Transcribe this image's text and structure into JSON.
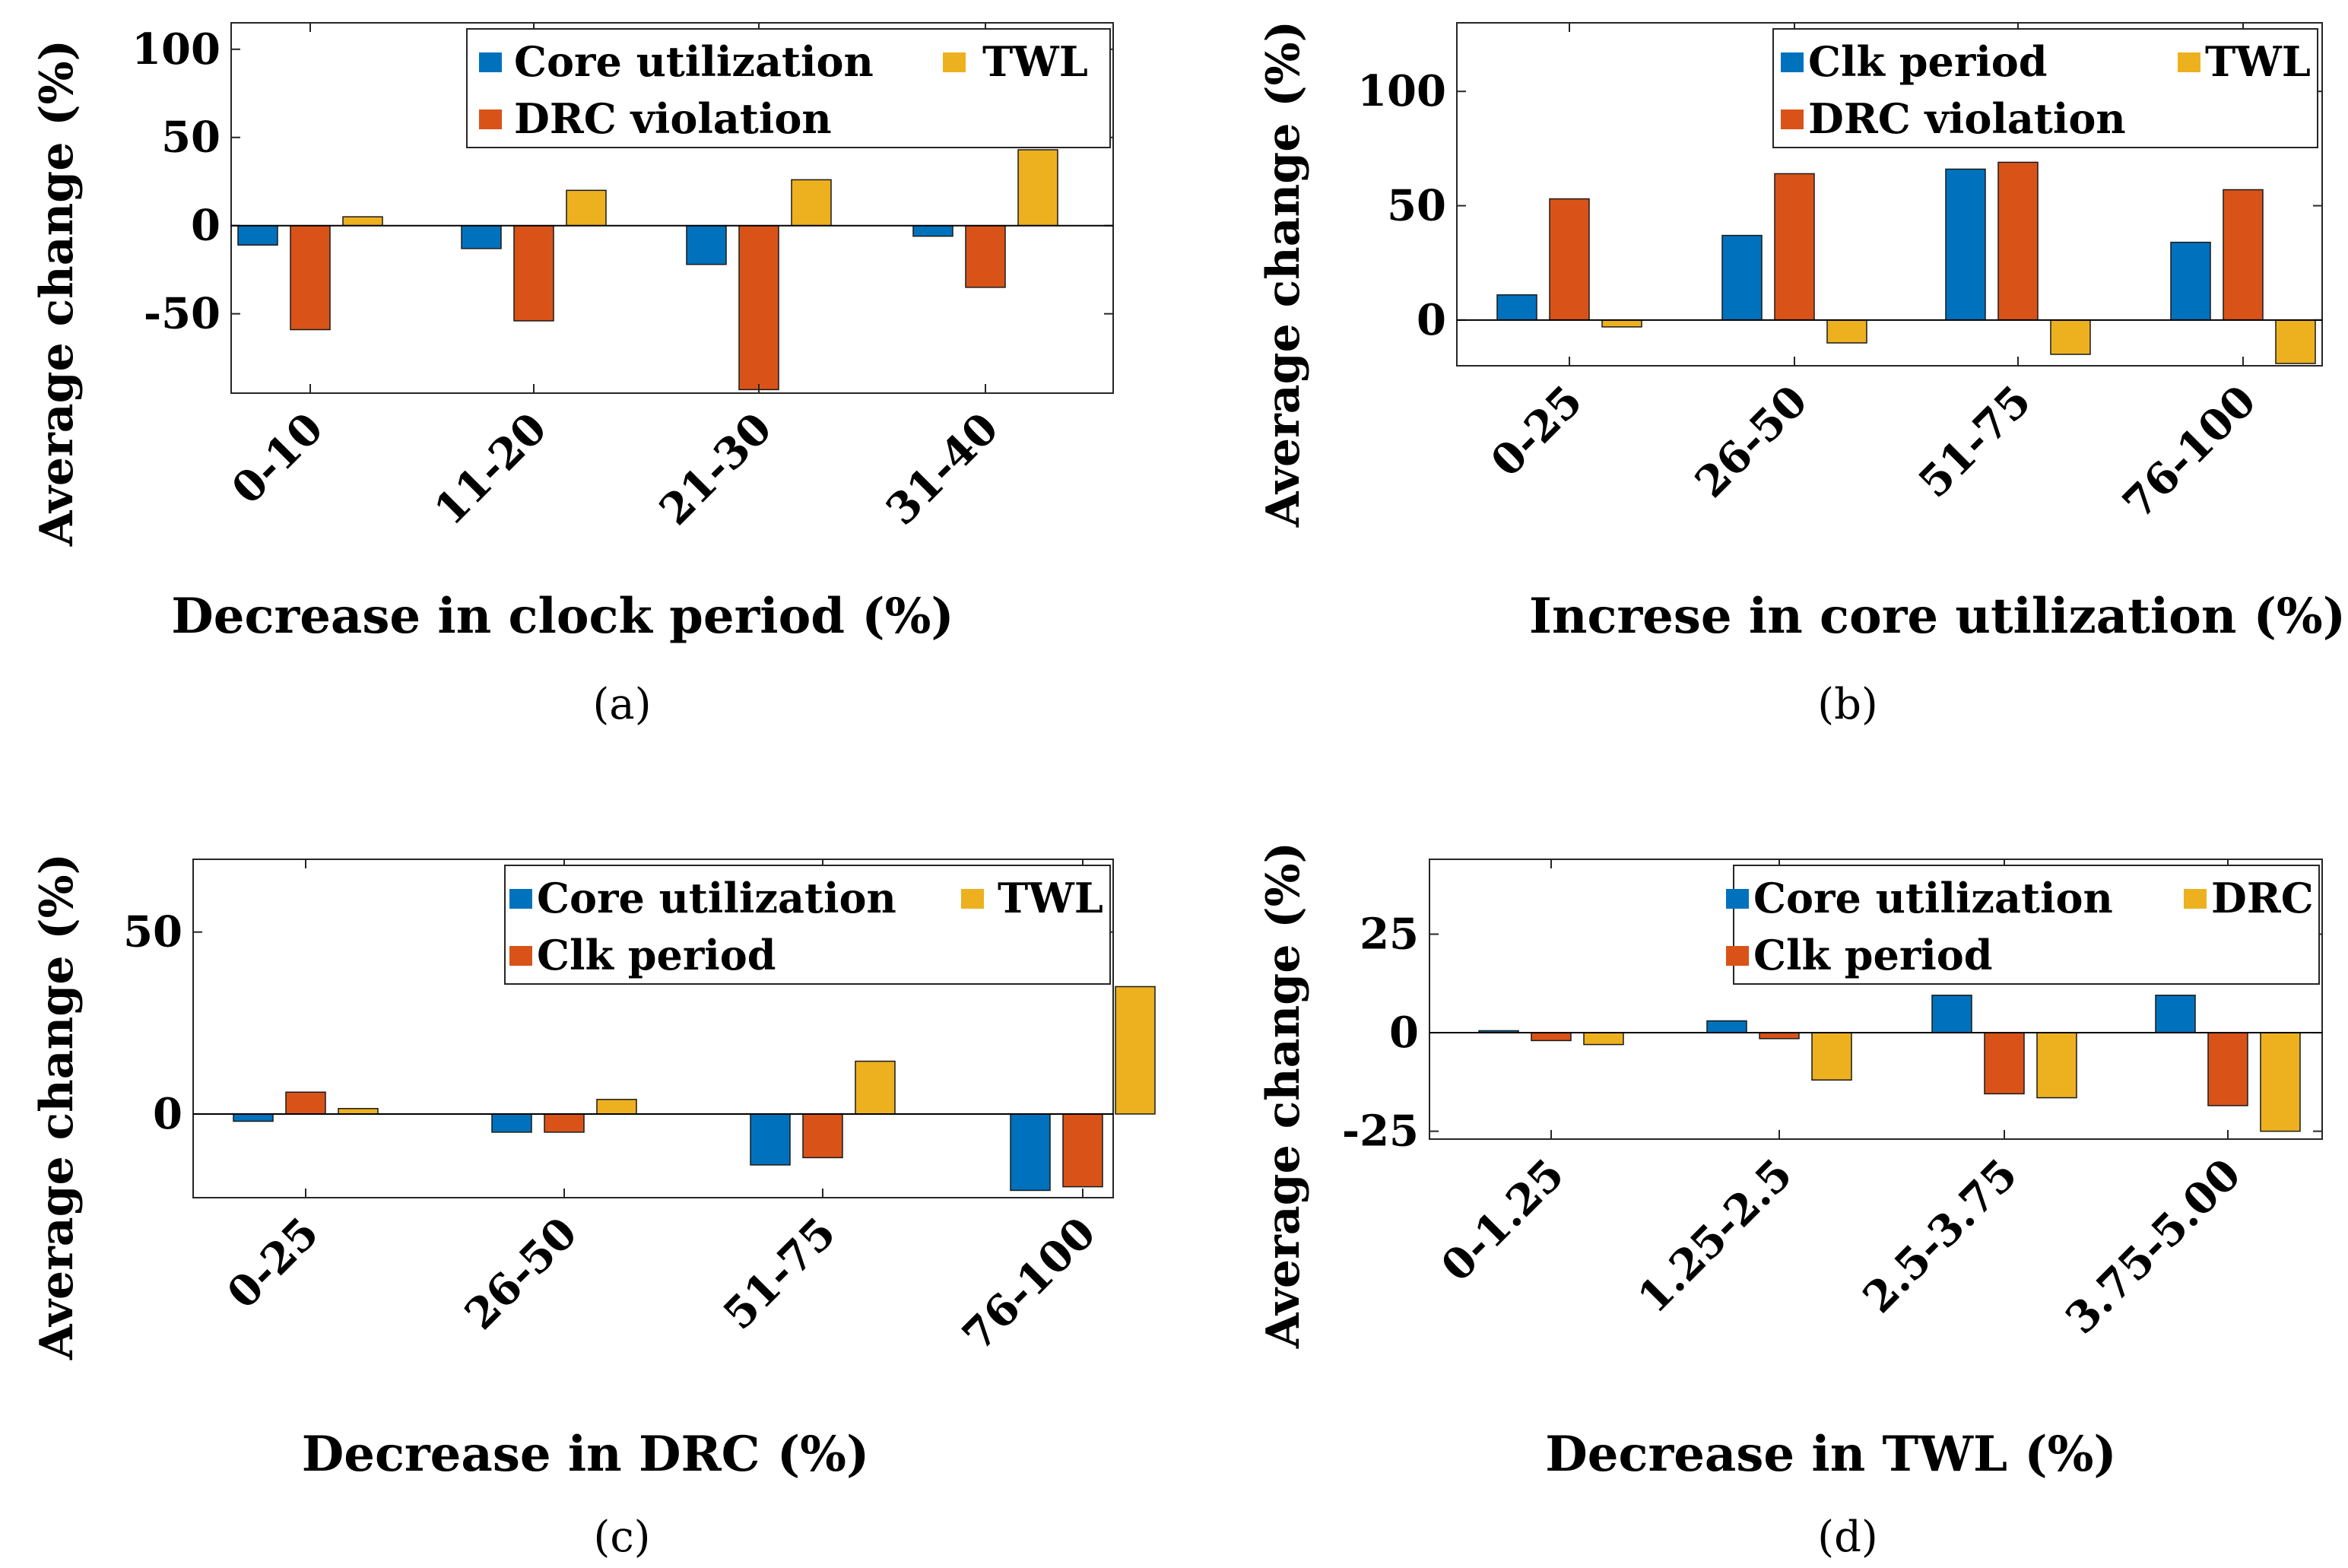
{
  "colors": {
    "blue": "#0072BD",
    "orange": "#D95319",
    "yellow": "#EDB120",
    "axis": "#262626",
    "zero_line": "#000000"
  },
  "chart_data": [
    {
      "type": "bar",
      "caption": "(a)",
      "xlabel": "Decrease in clock period (%)",
      "ylabel": "Average change (%)",
      "categories": [
        "0-10",
        "11-20",
        "21-30",
        "31-40"
      ],
      "ylim": [
        -95,
        115
      ],
      "yticks": [
        100,
        50,
        0,
        -50
      ],
      "ytick_labels": [
        "100",
        "50",
        "0",
        "-50"
      ],
      "series": [
        {
          "name": "Core utilization",
          "color": "blue",
          "values": [
            -11,
            -13,
            -22,
            -6
          ]
        },
        {
          "name": "DRC violation",
          "color": "orange",
          "values": [
            -59,
            -54,
            -93,
            -35
          ]
        },
        {
          "name": "TWL",
          "color": "yellow",
          "values": [
            5,
            20,
            26,
            43
          ]
        }
      ],
      "legend_order": [
        "Core utilization",
        "TWL",
        "DRC violation"
      ]
    },
    {
      "type": "bar",
      "caption": "(b)",
      "xlabel": "Increse in core utilization (%)",
      "ylabel": "Average change (%)",
      "categories": [
        "0-25",
        "26-50",
        "51-75",
        "76-100"
      ],
      "ylim": [
        -20,
        130
      ],
      "yticks": [
        100,
        50,
        0
      ],
      "ytick_labels": [
        "100",
        "50",
        "0"
      ],
      "series": [
        {
          "name": "Clk period",
          "color": "blue",
          "values": [
            11,
            37,
            66,
            34
          ]
        },
        {
          "name": "DRC violation",
          "color": "orange",
          "values": [
            53,
            64,
            69,
            57
          ]
        },
        {
          "name": "TWL",
          "color": "yellow",
          "values": [
            -3,
            -10,
            -15,
            -19
          ]
        }
      ],
      "legend_order": [
        "Clk period",
        "TWL",
        "DRC violation"
      ]
    },
    {
      "type": "bar",
      "caption": "(c)",
      "xlabel": "Decrease in DRC (%)",
      "ylabel": "Average change (%)",
      "categories": [
        "0-25",
        "26-50",
        "51-75",
        "76-100"
      ],
      "ylim": [
        -23,
        70
      ],
      "yticks": [
        50,
        0
      ],
      "ytick_labels": [
        "50",
        "0"
      ],
      "series": [
        {
          "name": "Core utilization",
          "color": "blue",
          "values": [
            -2,
            -5,
            -14,
            -21
          ]
        },
        {
          "name": "Clk period",
          "color": "orange",
          "values": [
            6,
            -5,
            -12,
            -20
          ]
        },
        {
          "name": "TWL",
          "color": "yellow",
          "values": [
            1.5,
            4,
            14.5,
            35
          ]
        }
      ],
      "legend_order": [
        "Core utilization",
        "TWL",
        "Clk period"
      ]
    },
    {
      "type": "bar",
      "caption": "(d)",
      "xlabel": "Decrease in TWL (%)",
      "ylabel": "Average change (%)",
      "categories": [
        "0-1.25",
        "1.25-2.5",
        "2.5-3.75",
        "3.75-5.00"
      ],
      "ylim": [
        -27,
        44
      ],
      "yticks": [
        25,
        0,
        -25
      ],
      "ytick_labels": [
        "25",
        "0",
        "-25"
      ],
      "series": [
        {
          "name": "Core utilization",
          "color": "blue",
          "values": [
            0.5,
            3,
            9.5,
            9.5
          ]
        },
        {
          "name": "Clk period",
          "color": "orange",
          "values": [
            -2,
            -1.5,
            -15.5,
            -18.5
          ]
        },
        {
          "name": "DRC",
          "color": "yellow",
          "values": [
            -3,
            -12,
            -16.5,
            -25
          ]
        }
      ],
      "legend_order": [
        "Core utilization",
        "DRC",
        "Clk period"
      ]
    }
  ]
}
